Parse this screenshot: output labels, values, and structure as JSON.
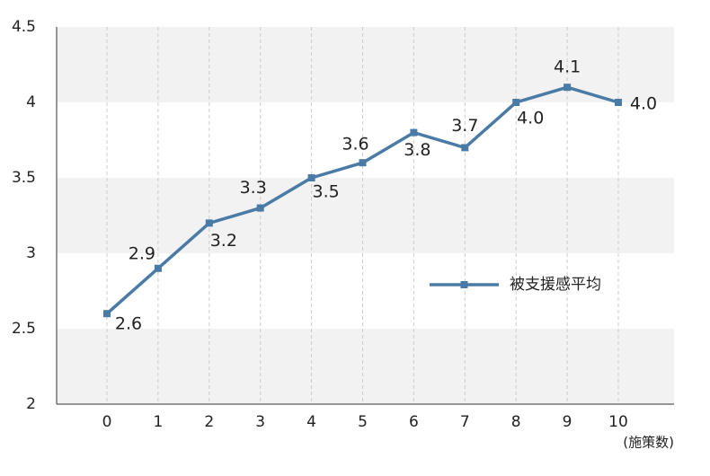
{
  "chart_data": {
    "type": "line",
    "categories": [
      "0",
      "1",
      "2",
      "3",
      "4",
      "5",
      "6",
      "7",
      "8",
      "9",
      "10"
    ],
    "series": [
      {
        "name": "被支援感平均",
        "color": "#4a7ba6",
        "values": [
          2.6,
          2.9,
          3.2,
          3.3,
          3.5,
          3.6,
          3.8,
          3.7,
          4.0,
          4.1,
          4.0
        ],
        "value_labels": [
          "2.6",
          "2.9",
          "3.2",
          "3.3",
          "3.5",
          "3.6",
          "3.8",
          "3.7",
          "4.0",
          "4.1",
          "4.0"
        ]
      }
    ],
    "x_label": "(施策数)",
    "ylim": [
      2,
      4.5
    ],
    "yticks": [
      2,
      2.5,
      3,
      3.5,
      4,
      4.5
    ],
    "grid": true,
    "legend": "right"
  }
}
